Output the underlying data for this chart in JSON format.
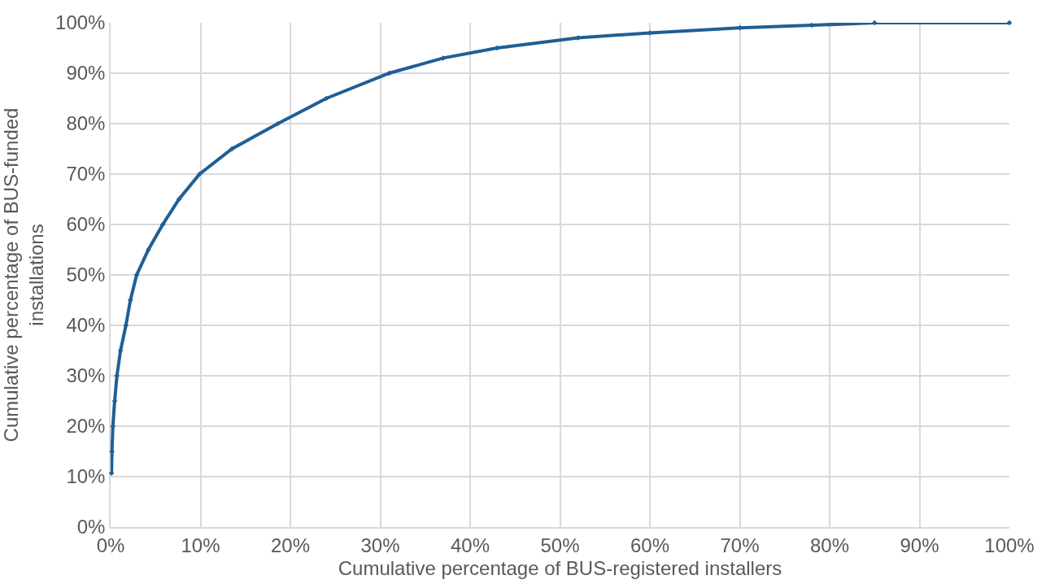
{
  "chart_data": {
    "type": "line",
    "xlabel": "Cumulative percentage of BUS-registered installers",
    "ylabel": "Cumulative percentage of BUS-funded installations",
    "x": [
      0.1,
      0.15,
      0.25,
      0.45,
      0.7,
      1.1,
      1.7,
      2.2,
      2.9,
      4.2,
      5.8,
      7.6,
      9.9,
      13.5,
      18.6,
      24,
      31,
      37,
      43,
      52,
      60,
      70,
      78,
      85,
      100
    ],
    "series": [
      {
        "color": "#1f5f96",
        "values": [
          10.7,
          15,
          20,
          25,
          30,
          35,
          40,
          45,
          50,
          55,
          60,
          65,
          70,
          75,
          80,
          85,
          90,
          93,
          95,
          97,
          98,
          99,
          99.5,
          100,
          100
        ]
      }
    ],
    "xlim": [
      0,
      100
    ],
    "xticks": [
      {
        "value": 0,
        "label": "0%"
      },
      {
        "value": 10,
        "label": "10%"
      },
      {
        "value": 20,
        "label": "20%"
      },
      {
        "value": 30,
        "label": "30%"
      },
      {
        "value": 40,
        "label": "40%"
      },
      {
        "value": 50,
        "label": "50%"
      },
      {
        "value": 60,
        "label": "60%"
      },
      {
        "value": 70,
        "label": "70%"
      },
      {
        "value": 80,
        "label": "80%"
      },
      {
        "value": 90,
        "label": "90%"
      },
      {
        "value": 100,
        "label": "100%"
      }
    ],
    "ylim": [
      0,
      100
    ],
    "yticks": [
      {
        "value": 0,
        "label": "0%"
      },
      {
        "value": 10,
        "label": "10%"
      },
      {
        "value": 20,
        "label": "20%"
      },
      {
        "value": 30,
        "label": "30%"
      },
      {
        "value": 40,
        "label": "40%"
      },
      {
        "value": 50,
        "label": "50%"
      },
      {
        "value": 60,
        "label": "60%"
      },
      {
        "value": 70,
        "label": "70%"
      },
      {
        "value": 80,
        "label": "80%"
      },
      {
        "value": 90,
        "label": "90%"
      },
      {
        "value": 100,
        "label": "100%"
      }
    ],
    "grid": true,
    "legend": false,
    "marker": "diamond",
    "line_style": "solid"
  }
}
